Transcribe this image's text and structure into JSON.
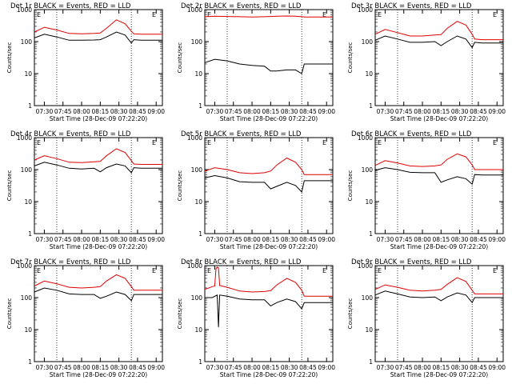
{
  "colors": {
    "events": "#000000",
    "lld": "#dd0000",
    "axis": "#000000"
  },
  "chart_data": [
    {
      "type": "line",
      "title": "Det 1r BLACK = Events, RED = LLD",
      "xlabel": "Start Time (28-Dec-09 07:22:20)",
      "ylabel": "Counts/sec",
      "yscale": "log",
      "ylim": [
        1,
        1000
      ],
      "x_ticks": [
        "07:30",
        "07:45",
        "08:00",
        "08:15",
        "08:30",
        "08:45",
        "09:00"
      ],
      "y_ticks": [
        "1",
        "10",
        "100",
        "1000"
      ],
      "vlines": [
        {
          "time": "07:40",
          "style": "dotted"
        },
        {
          "time": "08:40",
          "style": "dotted"
        }
      ],
      "markers": [
        "E",
        "E"
      ],
      "series": [
        {
          "name": "Events",
          "color": "#000000",
          "x": [
            "07:22",
            "07:30",
            "07:40",
            "07:50",
            "08:00",
            "08:10",
            "08:15",
            "08:20",
            "08:28",
            "08:35",
            "08:40",
            "08:42",
            "08:48",
            "08:55",
            "09:05"
          ],
          "values": [
            130,
            170,
            140,
            110,
            110,
            112,
            115,
            140,
            200,
            160,
            90,
            115,
            110,
            110,
            110
          ]
        },
        {
          "name": "LLD",
          "color": "#dd0000",
          "x": [
            "07:22",
            "07:30",
            "07:40",
            "07:50",
            "08:00",
            "08:10",
            "08:15",
            "08:20",
            "08:28",
            "08:35",
            "08:40",
            "08:42",
            "08:48",
            "08:55",
            "09:05"
          ],
          "values": [
            200,
            280,
            230,
            180,
            175,
            180,
            185,
            260,
            480,
            360,
            210,
            175,
            170,
            170,
            170
          ]
        }
      ]
    },
    {
      "type": "line",
      "title": "Det 2r BLACK = Events, RED = LLD",
      "xlabel": "Start Time (28-Dec-09 07:22:20)",
      "ylabel": "Counts/sec",
      "yscale": "log",
      "ylim": [
        1,
        1000
      ],
      "x_ticks": [
        "07:30",
        "07:45",
        "08:00",
        "08:15",
        "08:30",
        "08:45",
        "09:00"
      ],
      "y_ticks": [
        "1",
        "10",
        "100",
        "1000"
      ],
      "vlines": [
        {
          "time": "07:40",
          "style": "dotted"
        },
        {
          "time": "08:40",
          "style": "dotted"
        }
      ],
      "markers": [
        "E",
        "E"
      ],
      "series": [
        {
          "name": "Events",
          "color": "#000000",
          "x": [
            "07:22",
            "07:30",
            "07:40",
            "07:50",
            "08:00",
            "08:10",
            "08:15",
            "08:20",
            "08:28",
            "08:35",
            "08:40",
            "08:42",
            "08:48",
            "08:55",
            "09:05"
          ],
          "values": [
            22,
            28,
            25,
            20,
            18,
            17,
            12,
            12,
            13,
            13,
            10,
            20,
            20,
            20,
            20
          ]
        },
        {
          "name": "LLD",
          "color": "#dd0000",
          "x": [
            "07:22",
            "07:30",
            "07:40",
            "07:50",
            "08:00",
            "08:10",
            "08:15",
            "08:20",
            "08:28",
            "08:35",
            "08:40",
            "08:42",
            "08:48",
            "08:55",
            "09:05"
          ],
          "values": [
            600,
            620,
            610,
            600,
            590,
            600,
            610,
            620,
            630,
            620,
            600,
            590,
            590,
            590,
            590
          ]
        }
      ]
    },
    {
      "type": "line",
      "title": "Det 3r BLACK = Events, RED = LLD",
      "xlabel": "Start Time (28-Dec-09 07:22:20)",
      "ylabel": "Counts/sec",
      "yscale": "log",
      "ylim": [
        1,
        1000
      ],
      "x_ticks": [
        "07:30",
        "07:45",
        "08:00",
        "08:15",
        "08:30",
        "08:45",
        "09:00"
      ],
      "y_ticks": [
        "1",
        "10",
        "100",
        "1000"
      ],
      "vlines": [
        {
          "time": "07:40",
          "style": "dotted"
        },
        {
          "time": "08:40",
          "style": "dotted"
        }
      ],
      "markers": [
        "E",
        "E"
      ],
      "series": [
        {
          "name": "Events",
          "color": "#000000",
          "x": [
            "07:22",
            "07:30",
            "07:40",
            "07:50",
            "08:00",
            "08:10",
            "08:15",
            "08:20",
            "08:28",
            "08:35",
            "08:40",
            "08:42",
            "08:48",
            "08:55",
            "09:05"
          ],
          "values": [
            110,
            150,
            120,
            95,
            95,
            100,
            75,
            100,
            150,
            120,
            65,
            95,
            90,
            90,
            90
          ]
        },
        {
          "name": "LLD",
          "color": "#dd0000",
          "x": [
            "07:22",
            "07:30",
            "07:40",
            "07:50",
            "08:00",
            "08:10",
            "08:15",
            "08:20",
            "08:28",
            "08:35",
            "08:40",
            "08:42",
            "08:48",
            "08:55",
            "09:05"
          ],
          "values": [
            170,
            240,
            190,
            150,
            150,
            160,
            165,
            260,
            430,
            330,
            170,
            120,
            115,
            115,
            115
          ]
        }
      ]
    },
    {
      "type": "line",
      "title": "Det 4r BLACK = Events, RED = LLD",
      "xlabel": "Start Time (28-Dec-09 07:22:20)",
      "ylabel": "Counts/sec",
      "yscale": "log",
      "ylim": [
        1,
        1000
      ],
      "x_ticks": [
        "07:30",
        "07:45",
        "08:00",
        "08:15",
        "08:30",
        "08:45",
        "09:00"
      ],
      "y_ticks": [
        "1",
        "10",
        "100",
        "1000"
      ],
      "vlines": [
        {
          "time": "07:40",
          "style": "dotted"
        },
        {
          "time": "08:40",
          "style": "dotted"
        }
      ],
      "markers": [
        "E",
        "E"
      ],
      "series": [
        {
          "name": "Events",
          "color": "#000000",
          "x": [
            "07:22",
            "07:30",
            "07:40",
            "07:50",
            "08:00",
            "08:10",
            "08:15",
            "08:20",
            "08:28",
            "08:35",
            "08:40",
            "08:42",
            "08:48",
            "08:55",
            "09:05"
          ],
          "values": [
            130,
            170,
            140,
            110,
            105,
            110,
            85,
            115,
            150,
            130,
            80,
            115,
            110,
            110,
            110
          ]
        },
        {
          "name": "LLD",
          "color": "#dd0000",
          "x": [
            "07:22",
            "07:30",
            "07:40",
            "07:50",
            "08:00",
            "08:10",
            "08:15",
            "08:20",
            "08:28",
            "08:35",
            "08:40",
            "08:42",
            "08:48",
            "08:55",
            "09:05"
          ],
          "values": [
            200,
            270,
            220,
            170,
            165,
            175,
            180,
            270,
            450,
            340,
            190,
            150,
            145,
            145,
            145
          ]
        }
      ]
    },
    {
      "type": "line",
      "title": "Det 5r BLACK = Events, RED = LLD",
      "xlabel": "Start Time (28-Dec-09 07:22:20)",
      "ylabel": "Counts/sec",
      "yscale": "log",
      "ylim": [
        1,
        1000
      ],
      "x_ticks": [
        "07:30",
        "07:45",
        "08:00",
        "08:15",
        "08:30",
        "08:45",
        "09:00"
      ],
      "y_ticks": [
        "1",
        "10",
        "100",
        "1000"
      ],
      "vlines": [
        {
          "time": "07:40",
          "style": "dotted"
        },
        {
          "time": "08:40",
          "style": "dotted"
        }
      ],
      "markers": [
        "E",
        "E"
      ],
      "series": [
        {
          "name": "Events",
          "color": "#000000",
          "x": [
            "07:22",
            "07:30",
            "07:40",
            "07:50",
            "08:00",
            "08:10",
            "08:15",
            "08:20",
            "08:28",
            "08:35",
            "08:40",
            "08:42",
            "08:48",
            "08:55",
            "09:05"
          ],
          "values": [
            55,
            65,
            55,
            42,
            40,
            40,
            25,
            30,
            40,
            32,
            20,
            45,
            45,
            45,
            45
          ]
        },
        {
          "name": "LLD",
          "color": "#dd0000",
          "x": [
            "07:22",
            "07:30",
            "07:40",
            "07:50",
            "08:00",
            "08:10",
            "08:15",
            "08:20",
            "08:28",
            "08:35",
            "08:40",
            "08:42",
            "08:48",
            "08:55",
            "09:05"
          ],
          "values": [
            90,
            115,
            100,
            80,
            75,
            80,
            90,
            140,
            230,
            170,
            100,
            70,
            70,
            70,
            70
          ]
        }
      ]
    },
    {
      "type": "line",
      "title": "Det 6r BLACK = Events, RED = LLD",
      "xlabel": "Start Time (28-Dec-09 07:22:20)",
      "ylabel": "Counts/sec",
      "yscale": "log",
      "ylim": [
        1,
        1000
      ],
      "x_ticks": [
        "07:30",
        "07:45",
        "08:00",
        "08:15",
        "08:30",
        "08:45",
        "09:00"
      ],
      "y_ticks": [
        "1",
        "10",
        "100",
        "1000"
      ],
      "vlines": [
        {
          "time": "07:40",
          "style": "dotted"
        },
        {
          "time": "08:40",
          "style": "dotted"
        }
      ],
      "markers": [
        "E",
        "E"
      ],
      "series": [
        {
          "name": "Events",
          "color": "#000000",
          "x": [
            "07:22",
            "07:30",
            "07:40",
            "07:50",
            "08:00",
            "08:10",
            "08:15",
            "08:20",
            "08:28",
            "08:35",
            "08:40",
            "08:42",
            "08:48",
            "08:55",
            "09:05"
          ],
          "values": [
            95,
            115,
            100,
            82,
            80,
            80,
            40,
            48,
            60,
            52,
            35,
            70,
            68,
            68,
            68
          ]
        },
        {
          "name": "LLD",
          "color": "#dd0000",
          "x": [
            "07:22",
            "07:30",
            "07:40",
            "07:50",
            "08:00",
            "08:10",
            "08:15",
            "08:20",
            "08:28",
            "08:35",
            "08:40",
            "08:42",
            "08:48",
            "08:55",
            "09:05"
          ],
          "values": [
            135,
            190,
            160,
            130,
            125,
            130,
            140,
            210,
            310,
            250,
            140,
            100,
            100,
            100,
            100
          ]
        }
      ]
    },
    {
      "type": "line",
      "title": "Det 7r BLACK = Events, RED = LLD",
      "xlabel": "Start Time (28-Dec-09 07:22:20)",
      "ylabel": "Counts/sec",
      "yscale": "log",
      "ylim": [
        1,
        1000
      ],
      "x_ticks": [
        "07:30",
        "07:45",
        "08:00",
        "08:15",
        "08:30",
        "08:45",
        "09:00"
      ],
      "y_ticks": [
        "1",
        "10",
        "100",
        "1000"
      ],
      "vlines": [
        {
          "time": "07:40",
          "style": "dotted"
        },
        {
          "time": "08:40",
          "style": "dotted"
        }
      ],
      "markers": [
        "E",
        "E"
      ],
      "series": [
        {
          "name": "Events",
          "color": "#000000",
          "x": [
            "07:22",
            "07:30",
            "07:40",
            "07:50",
            "08:00",
            "08:10",
            "08:15",
            "08:20",
            "08:28",
            "08:35",
            "08:40",
            "08:42",
            "08:48",
            "08:55",
            "09:05"
          ],
          "values": [
            150,
            200,
            170,
            130,
            125,
            125,
            95,
            110,
            150,
            125,
            80,
            125,
            125,
            125,
            125
          ]
        },
        {
          "name": "LLD",
          "color": "#dd0000",
          "x": [
            "07:22",
            "07:30",
            "07:40",
            "07:50",
            "08:00",
            "08:10",
            "08:15",
            "08:20",
            "08:28",
            "08:35",
            "08:40",
            "08:42",
            "08:48",
            "08:55",
            "09:05"
          ],
          "values": [
            230,
            330,
            270,
            210,
            200,
            210,
            220,
            330,
            520,
            400,
            220,
            170,
            170,
            170,
            170
          ]
        }
      ]
    },
    {
      "type": "line",
      "title": "Det 8r BLACK = Events, RED = LLD",
      "xlabel": "Start Time (28-Dec-09 07:22:20)",
      "ylabel": "Counts/sec",
      "yscale": "log",
      "ylim": [
        1,
        1000
      ],
      "x_ticks": [
        "07:30",
        "07:45",
        "08:00",
        "08:15",
        "08:30",
        "08:45",
        "09:00"
      ],
      "y_ticks": [
        "1",
        "10",
        "100",
        "1000"
      ],
      "vlines": [
        {
          "time": "07:40",
          "style": "dotted"
        },
        {
          "time": "08:40",
          "style": "dotted"
        }
      ],
      "markers": [
        "E",
        "E"
      ],
      "series": [
        {
          "name": "Events",
          "color": "#000000",
          "x": [
            "07:22",
            "07:28",
            "07:32",
            "07:33",
            "07:34",
            "07:40",
            "07:50",
            "08:00",
            "08:10",
            "08:15",
            "08:20",
            "08:28",
            "08:35",
            "08:40",
            "08:42",
            "08:48",
            "08:55",
            "09:05"
          ],
          "values": [
            100,
            100,
            120,
            12,
            120,
            110,
            90,
            85,
            85,
            55,
            70,
            90,
            75,
            45,
            70,
            70,
            70,
            70
          ]
        },
        {
          "name": "LLD",
          "color": "#dd0000",
          "x": [
            "07:22",
            "07:28",
            "07:30",
            "07:31",
            "07:32",
            "07:33",
            "07:34",
            "07:40",
            "07:50",
            "08:00",
            "08:10",
            "08:15",
            "08:20",
            "08:28",
            "08:35",
            "08:40",
            "08:42",
            "08:48",
            "08:55",
            "09:05"
          ],
          "values": [
            180,
            220,
            230,
            800,
            900,
            850,
            240,
            210,
            160,
            150,
            155,
            165,
            250,
            400,
            300,
            170,
            110,
            110,
            110,
            110
          ]
        }
      ]
    },
    {
      "type": "line",
      "title": "Det 9r BLACK = Events, RED = LLD",
      "xlabel": "Start Time (28-Dec-09 07:22:20)",
      "ylabel": "Counts/sec",
      "yscale": "log",
      "ylim": [
        1,
        1000
      ],
      "x_ticks": [
        "07:30",
        "07:45",
        "08:00",
        "08:15",
        "08:30",
        "08:45",
        "09:00"
      ],
      "y_ticks": [
        "1",
        "10",
        "100",
        "1000"
      ],
      "vlines": [
        {
          "time": "07:40",
          "style": "dotted"
        },
        {
          "time": "08:40",
          "style": "dotted"
        }
      ],
      "markers": [
        "E",
        "E"
      ],
      "series": [
        {
          "name": "Events",
          "color": "#000000",
          "x": [
            "07:22",
            "07:30",
            "07:40",
            "07:50",
            "08:00",
            "08:10",
            "08:15",
            "08:20",
            "08:28",
            "08:35",
            "08:40",
            "08:42",
            "08:48",
            "08:55",
            "09:05"
          ],
          "values": [
            120,
            160,
            130,
            105,
            100,
            105,
            80,
            105,
            140,
            120,
            70,
            100,
            100,
            100,
            100
          ]
        },
        {
          "name": "LLD",
          "color": "#dd0000",
          "x": [
            "07:22",
            "07:30",
            "07:40",
            "07:50",
            "08:00",
            "08:10",
            "08:15",
            "08:20",
            "08:28",
            "08:35",
            "08:40",
            "08:42",
            "08:48",
            "08:55",
            "09:05"
          ],
          "values": [
            180,
            250,
            210,
            170,
            160,
            170,
            180,
            260,
            420,
            320,
            170,
            130,
            130,
            130,
            130
          ]
        }
      ]
    }
  ]
}
